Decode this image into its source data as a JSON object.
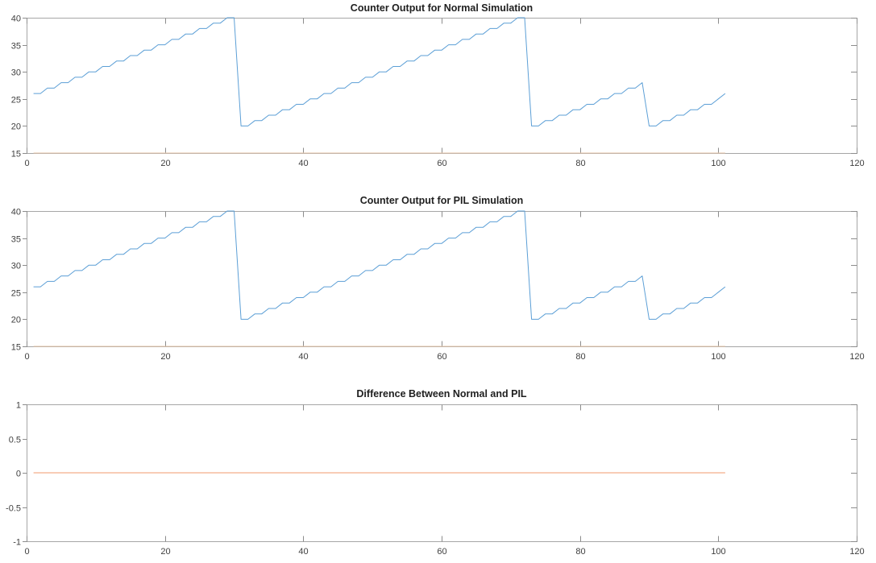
{
  "figure": {
    "kind": "matlab-figure",
    "background": "#ffffff"
  },
  "style": {
    "axis_color": "#a6a6a6",
    "tick_color": "#8c8c8c",
    "tick_label_color": "#3f3f3f",
    "title_color": "#1f1f1f",
    "line_blue": "#5c9fd6",
    "line_orange": "#f09a6e",
    "line_orange_pale": "#e4c3a5"
  },
  "chart_data": [
    {
      "type": "line",
      "title": "Counter Output for Normal Simulation",
      "xlabel": "",
      "ylabel": "",
      "xlim": [
        0,
        120
      ],
      "ylim": [
        15,
        40
      ],
      "xticks": [
        0,
        20,
        40,
        60,
        80,
        100,
        120
      ],
      "yticks": [
        15,
        20,
        25,
        30,
        35,
        40
      ],
      "grid": false,
      "box": true,
      "legend": null,
      "series": [
        {
          "name": "normal-counter",
          "color": "#5c9fd6",
          "x_start": 1,
          "y": [
            26,
            26,
            27,
            27,
            28,
            28,
            29,
            29,
            30,
            30,
            31,
            31,
            32,
            32,
            33,
            33,
            34,
            34,
            35,
            35,
            36,
            36,
            37,
            37,
            38,
            38,
            39,
            39,
            40,
            40,
            20,
            20,
            21,
            21,
            22,
            22,
            23,
            23,
            24,
            24,
            25,
            25,
            26,
            26,
            27,
            27,
            28,
            28,
            29,
            29,
            30,
            30,
            31,
            31,
            32,
            32,
            33,
            33,
            34,
            34,
            35,
            35,
            36,
            36,
            37,
            37,
            38,
            38,
            39,
            39,
            40,
            40,
            20,
            20,
            21,
            21,
            22,
            22,
            23,
            23,
            24,
            24,
            25,
            25,
            26,
            26,
            27,
            27,
            28,
            20,
            20,
            21,
            21,
            22,
            22,
            23,
            23,
            24,
            24,
            25,
            26
          ]
        },
        {
          "name": "constant-15-reference",
          "color": "#e4c3a5",
          "x": [
            1,
            101
          ],
          "y": [
            15,
            15
          ]
        }
      ]
    },
    {
      "type": "line",
      "title": "Counter Output for PIL Simulation",
      "xlabel": "",
      "ylabel": "",
      "xlim": [
        0,
        120
      ],
      "ylim": [
        15,
        40
      ],
      "xticks": [
        0,
        20,
        40,
        60,
        80,
        100,
        120
      ],
      "yticks": [
        15,
        20,
        25,
        30,
        35,
        40
      ],
      "grid": false,
      "box": true,
      "legend": null,
      "series": [
        {
          "name": "pil-counter",
          "color": "#5c9fd6",
          "x_start": 1,
          "y": [
            26,
            26,
            27,
            27,
            28,
            28,
            29,
            29,
            30,
            30,
            31,
            31,
            32,
            32,
            33,
            33,
            34,
            34,
            35,
            35,
            36,
            36,
            37,
            37,
            38,
            38,
            39,
            39,
            40,
            40,
            20,
            20,
            21,
            21,
            22,
            22,
            23,
            23,
            24,
            24,
            25,
            25,
            26,
            26,
            27,
            27,
            28,
            28,
            29,
            29,
            30,
            30,
            31,
            31,
            32,
            32,
            33,
            33,
            34,
            34,
            35,
            35,
            36,
            36,
            37,
            37,
            38,
            38,
            39,
            39,
            40,
            40,
            20,
            20,
            21,
            21,
            22,
            22,
            23,
            23,
            24,
            24,
            25,
            25,
            26,
            26,
            27,
            27,
            28,
            20,
            20,
            21,
            21,
            22,
            22,
            23,
            23,
            24,
            24,
            25,
            26
          ]
        },
        {
          "name": "constant-15-reference",
          "color": "#e4c3a5",
          "x": [
            1,
            101
          ],
          "y": [
            15,
            15
          ]
        }
      ]
    },
    {
      "type": "line",
      "title": "Difference Between Normal and PIL",
      "xlabel": "",
      "ylabel": "",
      "xlim": [
        0,
        120
      ],
      "ylim": [
        -1,
        1
      ],
      "xticks": [
        0,
        20,
        40,
        60,
        80,
        100,
        120
      ],
      "yticks": [
        -1,
        -0.5,
        0,
        0.5,
        1
      ],
      "grid": false,
      "box": true,
      "legend": null,
      "series": [
        {
          "name": "difference",
          "color": "#f09a6e",
          "x": [
            1,
            101
          ],
          "y": [
            0,
            0
          ]
        }
      ]
    }
  ]
}
